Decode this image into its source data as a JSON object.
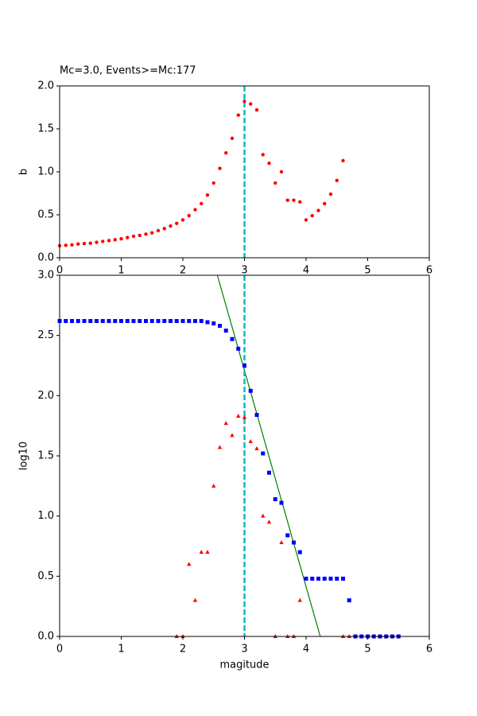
{
  "chart_data": [
    {
      "type": "scatter",
      "title": "Mc=3.0, Events>=Mc:177",
      "y_label": "b",
      "xlim": [
        0,
        6
      ],
      "ylim": [
        0,
        2
      ],
      "xticks": [
        0,
        1,
        2,
        3,
        4,
        5,
        6
      ],
      "yticks": [
        {
          "value": 0,
          "label": "0.0"
        },
        0.5,
        {
          "value": 1,
          "label": "1.0"
        },
        1.5,
        {
          "value": 2,
          "label": "2.0"
        }
      ],
      "vline": 3.0,
      "vline_color": "#00bfbf",
      "series": [
        {
          "type": "scatter",
          "marker": "circle",
          "color": "#ff0000",
          "x": [
            0,
            0.1,
            0.2,
            0.3,
            0.4,
            0.5,
            0.6,
            0.7,
            0.8,
            0.9,
            1.0,
            1.1,
            1.2,
            1.3,
            1.4,
            1.5,
            1.6,
            1.7,
            1.8,
            1.9,
            2.0,
            2.1,
            2.2,
            2.3,
            2.4,
            2.5,
            2.6,
            2.7,
            2.8,
            2.9,
            3.0,
            3.1,
            3.2,
            3.3,
            3.4,
            3.5,
            3.6,
            3.7,
            3.8,
            3.9,
            4.0,
            4.1,
            4.2,
            4.3,
            4.4,
            4.5,
            4.6
          ],
          "values": [
            0.14,
            0.145,
            0.15,
            0.16,
            0.165,
            0.17,
            0.18,
            0.19,
            0.2,
            0.21,
            0.22,
            0.235,
            0.25,
            0.26,
            0.275,
            0.29,
            0.315,
            0.34,
            0.37,
            0.4,
            0.44,
            0.49,
            0.56,
            0.63,
            0.73,
            0.87,
            1.04,
            1.22,
            1.39,
            1.66,
            1.82,
            1.79,
            1.72,
            1.2,
            1.1,
            0.87,
            1.0,
            0.67,
            0.67,
            0.65,
            0.44,
            0.49,
            0.55,
            0.63,
            0.74,
            0.9,
            1.13
          ]
        }
      ]
    },
    {
      "type": "scatter",
      "x_label": "magitude",
      "y_label": "log10",
      "xlim": [
        0,
        6
      ],
      "ylim": [
        0,
        3
      ],
      "xticks": [
        0,
        1,
        2,
        3,
        4,
        5,
        6
      ],
      "yticks": [
        {
          "value": 0,
          "label": "0.0"
        },
        0.5,
        {
          "value": 1,
          "label": "1.0"
        },
        1.5,
        {
          "value": 2,
          "label": "2.0"
        },
        2.5,
        {
          "value": 3,
          "label": "3.0"
        }
      ],
      "vline": 3.0,
      "vline_color": "#00bfbf",
      "series": [
        {
          "type": "scatter",
          "marker": "square",
          "color": "#0000ff",
          "x": [
            0,
            0.1,
            0.2,
            0.3,
            0.4,
            0.5,
            0.6,
            0.7,
            0.8,
            0.9,
            1.0,
            1.1,
            1.2,
            1.3,
            1.4,
            1.5,
            1.6,
            1.7,
            1.8,
            1.9,
            2.0,
            2.1,
            2.2,
            2.3,
            2.4,
            2.5,
            2.6,
            2.7,
            2.8,
            2.9,
            3.0,
            3.1,
            3.2,
            3.3,
            3.4,
            3.5,
            3.6,
            3.7,
            3.8,
            3.9,
            4.0,
            4.1,
            4.2,
            4.3,
            4.4,
            4.5,
            4.6,
            4.7,
            4.8,
            4.9,
            5.0,
            5.1,
            5.2,
            5.3,
            5.4,
            5.5
          ],
          "values": [
            2.62,
            2.62,
            2.62,
            2.62,
            2.62,
            2.62,
            2.62,
            2.62,
            2.62,
            2.62,
            2.62,
            2.62,
            2.62,
            2.62,
            2.62,
            2.62,
            2.62,
            2.62,
            2.62,
            2.62,
            2.62,
            2.62,
            2.62,
            2.62,
            2.61,
            2.6,
            2.58,
            2.54,
            2.47,
            2.39,
            2.25,
            2.04,
            1.84,
            1.52,
            1.36,
            1.14,
            1.11,
            0.84,
            0.78,
            0.7,
            0.48,
            0.48,
            0.48,
            0.48,
            0.48,
            0.48,
            0.48,
            0.3,
            0,
            0,
            0,
            0,
            0,
            0,
            0,
            0
          ]
        },
        {
          "type": "scatter",
          "marker": "triangle",
          "color": "#ff0000",
          "x": [
            1.9,
            2.0,
            2.1,
            2.2,
            2.3,
            2.4,
            2.5,
            2.6,
            2.7,
            2.8,
            2.9,
            3.0,
            3.1,
            3.2,
            3.3,
            3.4,
            3.5,
            3.6,
            3.7,
            3.8,
            3.9,
            4.6,
            4.7
          ],
          "values": [
            0,
            0,
            0.6,
            0.3,
            0.7,
            0.7,
            1.25,
            1.57,
            1.77,
            1.67,
            1.83,
            1.82,
            1.62,
            1.56,
            1.0,
            0.95,
            0,
            0.78,
            0,
            0,
            0.3,
            0,
            0
          ]
        },
        {
          "type": "line",
          "color": "#008000",
          "x": [
            2.56,
            4.23
          ],
          "values": [
            3.0,
            0
          ]
        }
      ]
    }
  ]
}
